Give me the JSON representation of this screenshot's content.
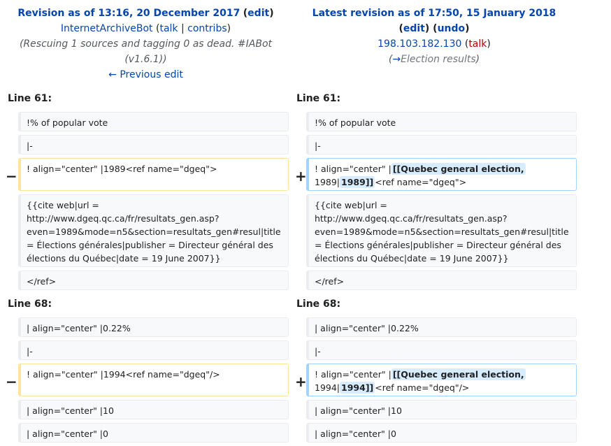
{
  "left_header": {
    "title_prefix": "Revision as of 13:16, 20 December 2017",
    "edit_label": "edit",
    "user": "InternetArchiveBot",
    "talk": "talk",
    "contribs": "contribs",
    "summary_line1": "(Rescuing 1 sources and tagging 0 as dead. #IABot",
    "summary_line2": "(v1.6.1))",
    "prev_edit": "← Previous edit"
  },
  "right_header": {
    "title": "Latest revision as of 17:50, 15 January 2018",
    "edit_label": "edit",
    "undo_label": "undo",
    "user": "198.103.182.130",
    "talk": "talk",
    "summary_arrow": "→",
    "summary_section": "Election results"
  },
  "blocks": [
    {
      "line_label": "Line 61:",
      "left": [
        "!% of popular vote",
        "|-",
        "! align=\"center\" |1989<ref name=\"dgeq\">",
        "{{cite web|url = http://www.dgeq.qc.ca/fr/resultats_gen.asp?even=1989&mode=n5&section=resultats_gen#resul|title = Élections générales|publisher = Directeur général des élections du Québec|date = 19 June 2007}}",
        "</ref>"
      ],
      "right": [
        "!% of popular vote",
        "|-",
        {
          "pre": "! align=\"center\" |",
          "ins1": "[[Quebec general election,",
          "mid": "1989|",
          "ins2": "1989]]",
          "post": "<ref name=\"dgeq\">"
        },
        "{{cite web|url = http://www.dgeq.qc.ca/fr/resultats_gen.asp?even=1989&mode=n5&section=resultats_gen#resul|title = Élections générales|publisher = Directeur général des élections du Québec|date = 19 June 2007}}",
        "</ref>"
      ]
    },
    {
      "line_label": "Line 68:",
      "left": [
        "| align=\"center\" |0.22%",
        "|-",
        "! align=\"center\" |1994<ref name=\"dgeq\"/>",
        "| align=\"center\" |10",
        "| align=\"center\" |0"
      ],
      "right": [
        "| align=\"center\" |0.22%",
        "|-",
        {
          "pre": "! align=\"center\" |",
          "ins1": "[[Quebec general election,",
          "mid": "1994|",
          "ins2": "1994]]",
          "post": "<ref name=\"dgeq\"/>"
        },
        "| align=\"center\" |10",
        "| align=\"center\" |0"
      ]
    }
  ],
  "markers": {
    "minus": "−",
    "plus": "+"
  },
  "colors": {
    "link": "#0645ad",
    "deleted_border": "#ffe49c",
    "added_border": "#a3d3ff",
    "inserted_bg": "#d8ecff"
  }
}
